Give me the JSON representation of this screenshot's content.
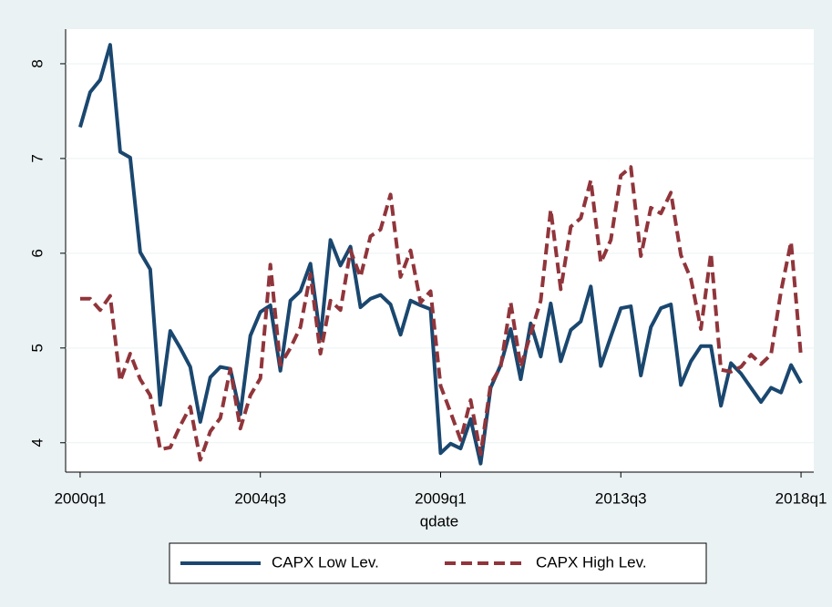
{
  "chart_data": {
    "type": "line",
    "x_label": "qdate",
    "x": [
      160,
      161,
      162,
      163,
      164,
      165,
      166,
      167,
      168,
      169,
      170,
      171,
      172,
      173,
      174,
      175,
      176,
      177,
      178,
      179,
      180,
      181,
      182,
      183,
      184,
      185,
      186,
      187,
      188,
      189,
      190,
      191,
      192,
      193,
      194,
      195,
      196,
      197,
      198,
      199,
      200,
      201,
      202,
      203,
      204,
      205,
      206,
      207,
      208,
      209,
      210,
      211,
      212,
      213,
      214,
      215,
      216,
      217,
      218,
      219,
      220,
      221,
      222,
      223,
      224,
      225,
      226,
      227,
      228,
      229,
      230,
      231,
      232
    ],
    "xlim": [
      158.55,
      233.27
    ],
    "xticks": [
      {
        "value": 160,
        "label": "2000q1"
      },
      {
        "value": 178,
        "label": "2004q3"
      },
      {
        "value": 196,
        "label": "2009q1"
      },
      {
        "value": 214,
        "label": "2013q3"
      },
      {
        "value": 232,
        "label": "2018q1"
      }
    ],
    "ylim": [
      3.69,
      8.365
    ],
    "yticks": [
      4,
      5,
      6,
      7,
      8
    ],
    "grid": true,
    "legend": "bottom",
    "series": [
      {
        "name": "CAPX Low Lev.",
        "color": "#1a476f",
        "line_style": "solid",
        "values": [
          7.33,
          7.7,
          7.83,
          8.2,
          7.07,
          7.01,
          6.01,
          5.83,
          4.4,
          5.18,
          5.0,
          4.8,
          4.22,
          4.69,
          4.8,
          4.78,
          4.3,
          5.13,
          5.38,
          5.45,
          4.76,
          5.5,
          5.6,
          5.89,
          5.1,
          6.14,
          5.87,
          6.07,
          5.43,
          5.52,
          5.56,
          5.46,
          5.14,
          5.5,
          5.45,
          5.41,
          3.89,
          3.99,
          3.94,
          4.25,
          3.78,
          4.58,
          4.82,
          5.2,
          4.67,
          5.26,
          4.91,
          5.47,
          4.86,
          5.19,
          5.28,
          5.65,
          4.81,
          5.12,
          5.42,
          5.44,
          4.71,
          5.22,
          5.42,
          5.46,
          4.61,
          4.86,
          5.02,
          5.02,
          4.39,
          4.84,
          4.73,
          4.58,
          4.43,
          4.58,
          4.53,
          4.82,
          4.63
        ]
      },
      {
        "name": "CAPX High Lev.",
        "color": "#90353b",
        "line_style": "dashed",
        "values": [
          5.52,
          5.52,
          5.4,
          5.55,
          4.65,
          4.94,
          4.67,
          4.5,
          3.93,
          3.95,
          4.18,
          4.38,
          3.82,
          4.12,
          4.26,
          4.78,
          4.15,
          4.5,
          4.68,
          5.88,
          4.82,
          5.0,
          5.22,
          5.78,
          4.94,
          5.5,
          5.4,
          6.03,
          5.75,
          6.18,
          6.25,
          6.62,
          5.75,
          6.03,
          5.48,
          5.6,
          4.6,
          4.32,
          4.03,
          4.45,
          3.88,
          4.62,
          4.8,
          5.48,
          4.8,
          5.15,
          5.5,
          6.46,
          5.62,
          6.28,
          6.37,
          6.77,
          5.9,
          6.14,
          6.82,
          6.91,
          5.97,
          6.48,
          6.42,
          6.64,
          5.98,
          5.73,
          5.2,
          6.0,
          4.77,
          4.75,
          4.8,
          4.93,
          4.83,
          4.93,
          5.6,
          6.12,
          4.9
        ]
      }
    ]
  }
}
